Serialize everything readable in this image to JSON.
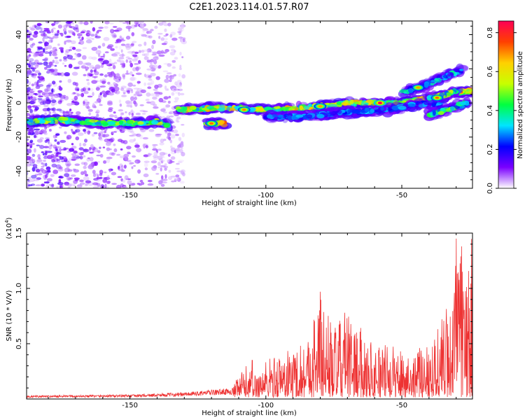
{
  "figure": {
    "title": "C2E1.2023.114.01.57.R07"
  },
  "chart_data": [
    {
      "type": "heatmap",
      "xlabel": "Height of straight line (km)",
      "ylabel": "Frequency (Hz)",
      "xlim": [
        -188,
        -24
      ],
      "ylim": [
        -50,
        48
      ],
      "xticks": [
        -150,
        -100,
        -50
      ],
      "yticks": [
        -40,
        -20,
        0,
        20,
        40
      ],
      "colorbar": {
        "label": "Normalized spectral amplitude",
        "range": [
          0.0,
          0.86
        ],
        "ticks": [
          0.0,
          0.2,
          0.4,
          0.6,
          0.8
        ],
        "colors": [
          "#ffffff",
          "#7b00ff",
          "#0000ff",
          "#00e5ff",
          "#00ff40",
          "#c8ff00",
          "#ffd000",
          "#ff4000",
          "#ff0055"
        ]
      },
      "tracks": [
        {
          "points": [
            [
              -188,
              -11
            ],
            [
              -175,
              -10
            ],
            [
              -160,
              -12
            ],
            [
              -150,
              -12
            ],
            [
              -140,
              -11
            ],
            [
              -136,
              -13
            ]
          ],
          "amplitude": 0.45
        },
        {
          "points": [
            [
              -133,
              -4
            ],
            [
              -120,
              -3
            ],
            [
              -110,
              -3
            ],
            [
              -100,
              -4
            ],
            [
              -90,
              -3
            ],
            [
              -80,
              -2
            ],
            [
              -70,
              0
            ],
            [
              -60,
              0
            ],
            [
              -50,
              0
            ],
            [
              -40,
              3
            ],
            [
              -30,
              6
            ],
            [
              -24,
              7
            ]
          ],
          "amplitude": 0.55
        },
        {
          "points": [
            [
              -122,
              -12
            ],
            [
              -115,
              -12
            ]
          ],
          "amplitude": 0.6
        },
        {
          "points": [
            [
              -100,
              -8
            ],
            [
              -85,
              -8
            ],
            [
              -75,
              -6
            ],
            [
              -65,
              -5
            ],
            [
              -55,
              -4
            ],
            [
              -45,
              -1
            ],
            [
              -35,
              0
            ]
          ],
          "amplitude": 0.25
        },
        {
          "points": [
            [
              -50,
              6
            ],
            [
              -42,
              10
            ],
            [
              -33,
              16
            ],
            [
              -28,
              19
            ]
          ],
          "amplitude": 0.3
        },
        {
          "points": [
            [
              -40,
              3
            ],
            [
              -35,
              4
            ],
            [
              -30,
              7
            ]
          ],
          "amplitude": 0.45
        },
        {
          "points": [
            [
              -40,
              -7
            ],
            [
              -33,
              -4
            ],
            [
              -26,
              0
            ]
          ],
          "amplitude": 0.4
        }
      ],
      "hotspots": [
        {
          "x": -120,
          "y": -12,
          "amplitude": 0.72
        },
        {
          "x": -108,
          "y": -4,
          "amplitude": 0.7
        },
        {
          "x": -80,
          "y": -2,
          "amplitude": 0.68
        },
        {
          "x": -58,
          "y": 0,
          "amplitude": 0.86
        },
        {
          "x": -44,
          "y": 9,
          "amplitude": 0.68
        },
        {
          "x": -37,
          "y": 3,
          "amplitude": 0.72
        }
      ],
      "noise_region": {
        "x": [
          -188,
          -130
        ],
        "y": [
          -50,
          48
        ],
        "amplitude": 0.1
      }
    },
    {
      "type": "line",
      "xlabel": "Height of straight line (km)",
      "ylabel": "SNR (10 * V/V)",
      "yscale_label": "(x10",
      "yscale_exponent": "4",
      "yscale_close": ")",
      "xlim": [
        -188,
        -24
      ],
      "ylim": [
        0,
        15000
      ],
      "xticks": [
        -150,
        -100,
        -50
      ],
      "yticks": [
        5000,
        10000,
        15000
      ],
      "ytick_labels": [
        "0.5",
        "1.0",
        "1.5"
      ],
      "color": "#ee3333",
      "series": [
        {
          "envelope_x": [
            -188,
            -150,
            -130,
            -112,
            -110,
            -107,
            -104,
            -100,
            -90,
            -85,
            -80,
            -75,
            -70,
            -60,
            -50,
            -45,
            -40,
            -35,
            -32,
            -30,
            -28,
            -26,
            -24
          ],
          "envelope_y": [
            300,
            400,
            600,
            1000,
            2000,
            3000,
            2200,
            3500,
            4500,
            5500,
            9500,
            6500,
            7500,
            5000,
            4500,
            4000,
            5500,
            7500,
            9500,
            14000,
            12500,
            11500,
            15000
          ],
          "peaks": [
            {
              "x": -80,
              "y": 9700
            },
            {
              "x": -71,
              "y": 7800
            },
            {
              "x": -105,
              "y": 3500
            },
            {
              "x": -30,
              "y": 14500
            },
            {
              "x": -28,
              "y": 13800
            },
            {
              "x": -24,
              "y": 15200
            }
          ]
        }
      ]
    }
  ]
}
